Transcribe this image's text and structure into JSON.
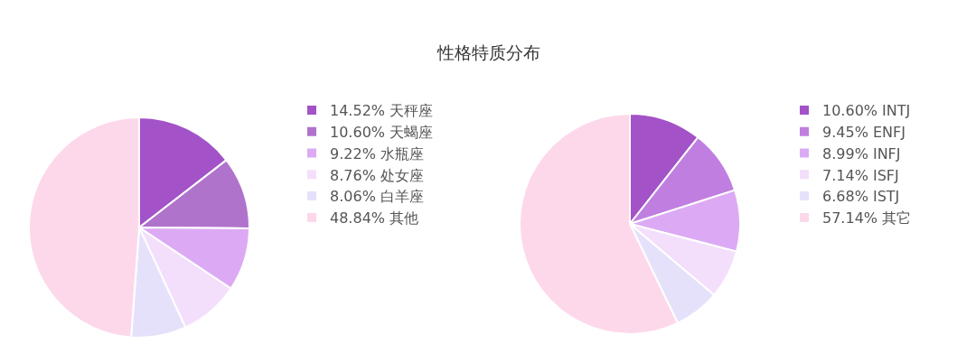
{
  "chart_data": [
    {
      "type": "pie",
      "title": "性格特质分布",
      "legend": "right",
      "categories": [
        "天秤座",
        "天蝎座",
        "水瓶座",
        "处女座",
        "白羊座",
        "其他"
      ],
      "values": [
        14.52,
        10.6,
        9.22,
        8.76,
        8.06,
        48.84
      ],
      "value_labels": [
        "14.52%",
        "10.60%",
        "9.22%",
        "8.76%",
        "8.06%",
        "48.84%"
      ],
      "colors": [
        "#a352c8",
        "#b073cc",
        "#dcaaf4",
        "#f3dffb",
        "#e6e1fb",
        "#fdd8ea"
      ]
    },
    {
      "type": "pie",
      "legend": "right",
      "categories": [
        "INTJ",
        "ENFJ",
        "INFJ",
        "ISFJ",
        "ISTJ",
        "其它"
      ],
      "values": [
        10.6,
        9.45,
        8.99,
        7.14,
        6.68,
        57.14
      ],
      "value_labels": [
        "10.60%",
        "9.45%",
        "8.99%",
        "7.14%",
        "6.68%",
        "57.14%"
      ],
      "colors": [
        "#a352c8",
        "#c07fe0",
        "#dcaaf4",
        "#f3dffb",
        "#e6e1fb",
        "#fdd8ea"
      ]
    }
  ]
}
